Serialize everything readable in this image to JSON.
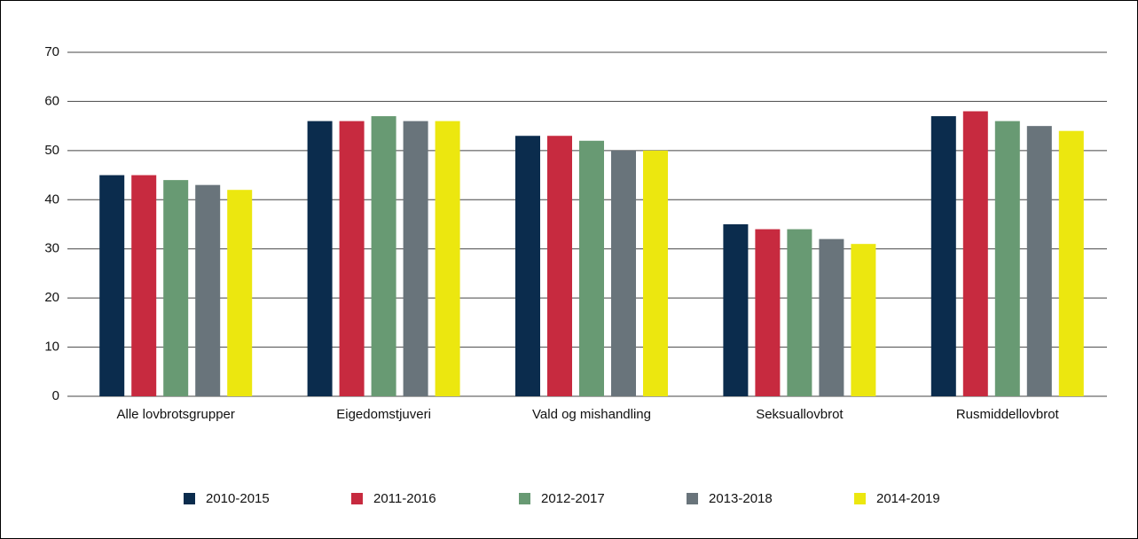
{
  "chart_data": {
    "type": "bar",
    "categories": [
      "Alle lovbrotsgrupper",
      "Eigedomstjuveri",
      "Vald og mishandling",
      "Seksuallovbrot",
      "Rusmiddellovbrot"
    ],
    "series": [
      {
        "name": "2010-2015",
        "color": "#0b2c4d",
        "values": [
          45,
          56,
          53,
          35,
          57
        ]
      },
      {
        "name": "2011-2016",
        "color": "#c72a3f",
        "values": [
          45,
          56,
          53,
          34,
          58
        ]
      },
      {
        "name": "2012-2017",
        "color": "#689a73",
        "values": [
          44,
          57,
          52,
          34,
          56
        ]
      },
      {
        "name": "2013-2018",
        "color": "#69747b",
        "values": [
          43,
          56,
          50,
          32,
          55
        ]
      },
      {
        "name": "2014-2019",
        "color": "#ece70f",
        "values": [
          42,
          56,
          50,
          31,
          54
        ]
      }
    ],
    "ylim": [
      0,
      70
    ],
    "yticks": [
      0,
      10,
      20,
      30,
      40,
      50,
      60,
      70
    ],
    "grid": true
  }
}
